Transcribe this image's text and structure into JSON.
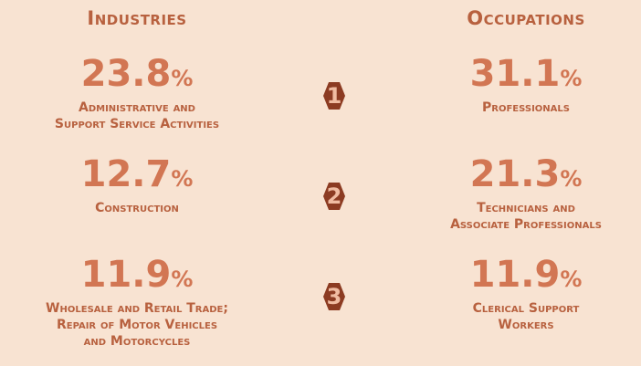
{
  "industries": {
    "title": "Industries",
    "items": [
      {
        "value": 23.8,
        "label": [
          "Administrative and",
          "Support Service Activities"
        ]
      },
      {
        "value": 12.7,
        "label": [
          "Construction"
        ]
      },
      {
        "value": 11.9,
        "label": [
          "Wholesale and Retail Trade;",
          "Repair of Motor Vehicles",
          "and Motorcycles"
        ]
      }
    ]
  },
  "occupations": {
    "title": "Occupations",
    "items": [
      {
        "value": 31.1,
        "label": [
          "Professionals"
        ]
      },
      {
        "value": 21.3,
        "label": [
          "Technicians and",
          "Associate Professionals"
        ]
      },
      {
        "value": 11.9,
        "label": [
          "Clerical Support",
          "Workers"
        ]
      }
    ]
  },
  "unit": "%",
  "ranks": [
    1,
    2,
    3
  ]
}
